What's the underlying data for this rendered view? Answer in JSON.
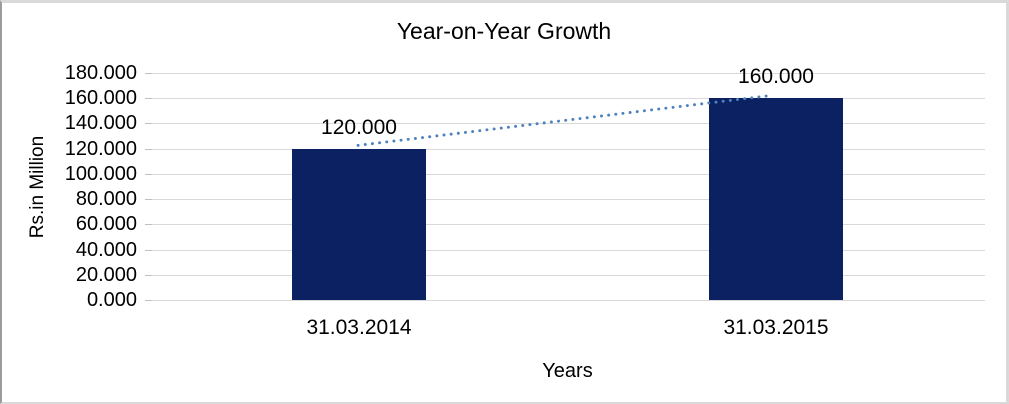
{
  "frame": {
    "background": "#FFFFFF",
    "border_color": "#D9D9D9"
  },
  "colors": {
    "bar": "#0B2161",
    "trendline": "#4F81BD",
    "gridline": "#D9D9D9",
    "tick": "#BFBFBF",
    "text": "#000000"
  },
  "chart_data": {
    "type": "bar",
    "title": "Year-on-Year Growth",
    "xlabel": "Years",
    "ylabel": "Rs.in Million",
    "categories": [
      "31.03.2014",
      "31.03.2015"
    ],
    "values": [
      120,
      160
    ],
    "data_labels": [
      "120.000",
      "160.000"
    ],
    "ylim": [
      0,
      180
    ],
    "ytick_step": 20,
    "yticks": [
      {
        "value": 180,
        "label": "180.000"
      },
      {
        "value": 160,
        "label": "160.000"
      },
      {
        "value": 140,
        "label": "140.000"
      },
      {
        "value": 120,
        "label": "120.000"
      },
      {
        "value": 100,
        "label": "100.000"
      },
      {
        "value": 80,
        "label": "80.000"
      },
      {
        "value": 60,
        "label": "60.000"
      },
      {
        "value": 40,
        "label": "40.000"
      },
      {
        "value": 20,
        "label": "20.000"
      },
      {
        "value": 0,
        "label": "0.000"
      }
    ],
    "grid": true,
    "legend": "none",
    "trendline": {
      "style": "dotted",
      "color": "#4F81BD",
      "from_category_index": 0,
      "to_category_index": 1
    }
  }
}
